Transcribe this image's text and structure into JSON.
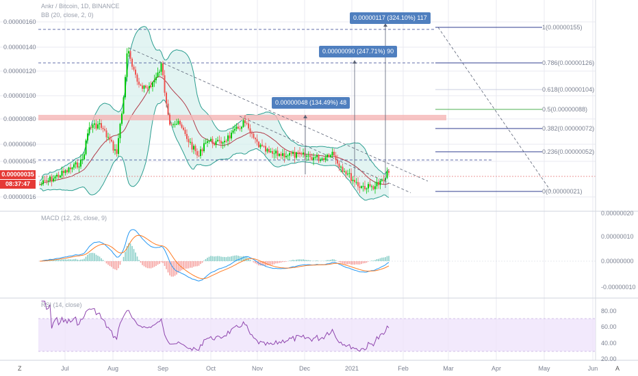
{
  "colors": {
    "up": "#26a69a",
    "up_fill": "#00c805",
    "down": "#ef5350",
    "bb_line": "#2a9d8f",
    "bb_fill": "#d6f0ec",
    "basis": "#b03a48",
    "macd": "#2196f3",
    "signal": "#ff7a20",
    "rsi": "#8e44ad",
    "rsi_band": "#efe4fb",
    "grid": "#e8eaf0",
    "fib": "#2f3e8f",
    "fib_mid": "#4caf50",
    "callout": "#4f7fbf",
    "price_tag": "#e53935",
    "resistance": "#f5b5b5"
  },
  "header": {
    "symbol_line": "Ankr / Bitcoin, 1D, BINANCE",
    "bb_line": "BB (20, close, 2, 0)",
    "macd_line": "MACD (12, 26, close, 9)",
    "rsi_line": "RSI (14, close)"
  },
  "price_axis": {
    "labels": [
      "0.00000160",
      "0.00000140",
      "0.00000120",
      "0.00000100",
      "0.00000080",
      "0.00000060",
      "0.00000045",
      "0.00000016"
    ],
    "current_price": "0.00000035",
    "countdown": "08:37:47"
  },
  "macd_axis": {
    "labels": [
      "0.00000020",
      "0.00000010",
      "0.00000000",
      "-0.00000010"
    ]
  },
  "rsi_axis": {
    "labels": [
      "80.00",
      "60.00",
      "40.00",
      "20.00"
    ]
  },
  "time_axis": {
    "labels": [
      "Jul",
      "Aug",
      "Sep",
      "Oct",
      "Nov",
      "Dec",
      "2021",
      "Feb",
      "Mar",
      "Apr",
      "May",
      "Jun"
    ]
  },
  "fib_levels": [
    {
      "ratio": "1",
      "price": "0.00000155",
      "label": "1(0.00000155)"
    },
    {
      "ratio": "0.786",
      "price": "0.00000126",
      "label": "0.786(0.00000126)"
    },
    {
      "ratio": "0.618",
      "price": "0.00000104",
      "label": "0.618(0.00000104)"
    },
    {
      "ratio": "0.5",
      "price": "0.00000088",
      "label": "0.5(0.00000088)"
    },
    {
      "ratio": "0.382",
      "price": "0.00000072",
      "label": "0.382(0.00000072)"
    },
    {
      "ratio": "0.236",
      "price": "0.00000052",
      "label": "0.236(0.00000052)"
    },
    {
      "ratio": "0",
      "price": "0.00000021",
      "label": "0(0.00000021)"
    }
  ],
  "callouts": [
    {
      "text": "0.00000117 (324.10%) 117"
    },
    {
      "text": "0.00000090 (247.71%) 90"
    },
    {
      "text": "0.00000048 (134.49%) 48"
    }
  ],
  "footer": {
    "left_button": "Z",
    "right_button": "A"
  }
}
